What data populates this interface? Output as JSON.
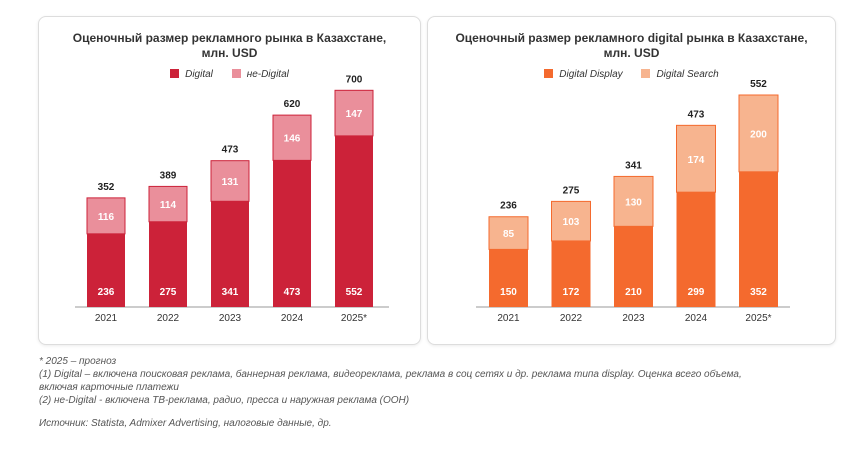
{
  "chart_data": [
    {
      "type": "bar",
      "title": "Оценочный размер рекламного рынка в Казахстане, млн. USD",
      "categories": [
        "2021",
        "2022",
        "2023",
        "2024",
        "2025*"
      ],
      "series": [
        {
          "name": "Digital",
          "values": [
            236,
            275,
            341,
            473,
            552
          ],
          "color": "#cc2239"
        },
        {
          "name": "не-Digital",
          "values": [
            116,
            114,
            131,
            146,
            147
          ],
          "color": "#ea8f9b"
        }
      ],
      "totals": [
        352,
        389,
        473,
        620,
        700
      ],
      "stacked": true,
      "ylim": [
        0,
        700
      ],
      "legend": "top"
    },
    {
      "type": "bar",
      "title": "Оценочный размер  рекламного digital рынка в Казахстане, млн. USD",
      "categories": [
        "2021",
        "2022",
        "2023",
        "2024",
        "2025*"
      ],
      "series": [
        {
          "name": "Digital Display",
          "values": [
            150,
            172,
            210,
            299,
            352
          ],
          "color": "#f46a2e"
        },
        {
          "name": "Digital Search",
          "values": [
            85,
            103,
            130,
            174,
            200
          ],
          "color": "#f7b48f"
        }
      ],
      "totals": [
        236,
        275,
        341,
        473,
        552
      ],
      "stacked": true,
      "ylim": [
        0,
        552
      ],
      "legend": "top"
    }
  ],
  "panels": [
    {
      "title_line1": "Оценочный размер рекламного рынка в Казахстане,",
      "title_line2": "млн. USD"
    },
    {
      "title_line1": "Оценочный размер  рекламного digital рынка в Казахстане,",
      "title_line2": "млн. USD"
    }
  ],
  "footnotes": {
    "forecast": "* 2025 – прогноз",
    "note1_line1": "(1) Digital – включена поисковая реклама,  баннерная реклама, видеореклама,  реклама в соц сетях и др. реклама типа display. Оценка всего объема,",
    "note1_line2": "включая карточные платежи",
    "note2": "(2) не-Digital - включена ТВ-реклама, радио, пресса и наружная реклама (ООН)",
    "source": "Источник: Statista, Admixer Advertising, налоговые данные, др."
  }
}
